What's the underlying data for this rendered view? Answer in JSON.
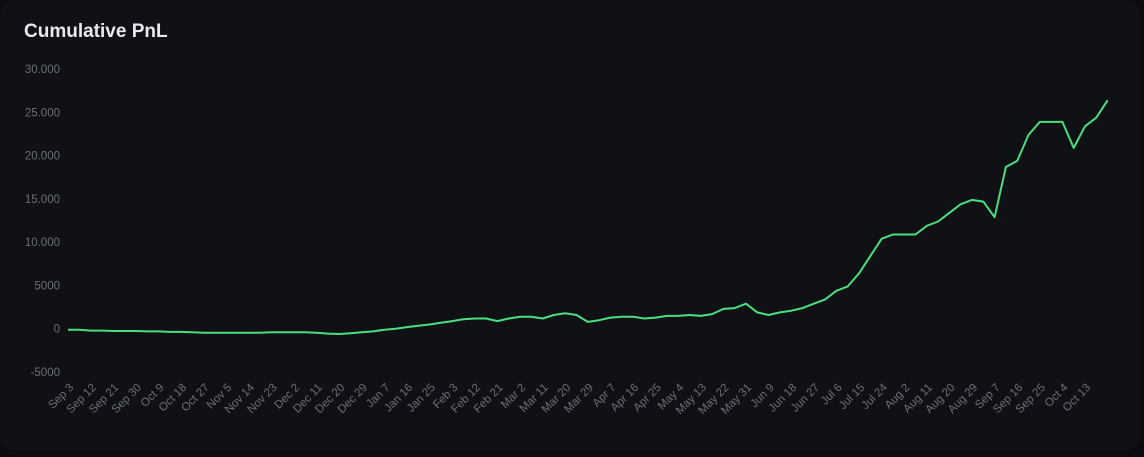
{
  "chart_data": {
    "type": "line",
    "title": "Cumulative PnL",
    "categories": [
      "Sep 3",
      null,
      "Sep 12",
      null,
      "Sep 21",
      null,
      "Sep 30",
      null,
      "Oct 9",
      null,
      "Oct 18",
      null,
      "Oct 27",
      null,
      "Nov 5",
      null,
      "Nov 14",
      null,
      "Nov 23",
      null,
      "Dec 2",
      null,
      "Dec 11",
      null,
      "Dec 20",
      null,
      "Dec 29",
      null,
      "Jan 7",
      null,
      "Jan 16",
      null,
      "Jan 25",
      null,
      "Feb 3",
      null,
      "Feb 12",
      null,
      "Feb 21",
      null,
      "Mar 2",
      null,
      "Mar 11",
      null,
      "Mar 20",
      null,
      "Mar 29",
      null,
      "Apr 7",
      null,
      "Apr 16",
      null,
      "Apr 25",
      null,
      "May 4",
      null,
      "May 13",
      null,
      "May 22",
      null,
      "May 31",
      null,
      "Jun 9",
      null,
      "Jun 18",
      null,
      "Jun 27",
      null,
      "Jul 6",
      null,
      "Jul 15",
      null,
      "Jul 24",
      null,
      "Aug 2",
      null,
      "Aug 11",
      null,
      "Aug 20",
      null,
      "Aug 29",
      null,
      "Sep 7",
      null,
      "Sep 16",
      null,
      "Sep 25",
      null,
      "Oct 4",
      null,
      "Oct 13",
      null,
      null
    ],
    "values": [
      0,
      0,
      -100,
      -100,
      -150,
      -150,
      -150,
      -200,
      -200,
      -250,
      -250,
      -300,
      -350,
      -350,
      -350,
      -350,
      -350,
      -350,
      -300,
      -300,
      -300,
      -300,
      -350,
      -450,
      -500,
      -400,
      -300,
      -200,
      0,
      100,
      300,
      450,
      600,
      800,
      1000,
      1200,
      1300,
      1300,
      1000,
      1300,
      1500,
      1500,
      1300,
      1700,
      1900,
      1700,
      900,
      1100,
      1400,
      1500,
      1500,
      1300,
      1400,
      1600,
      1600,
      1700,
      1600,
      1800,
      2400,
      2500,
      3000,
      2000,
      1700,
      2000,
      2200,
      2500,
      3000,
      3500,
      4500,
      5000,
      6500,
      8500,
      10500,
      11000,
      11000,
      11000,
      12000,
      12500,
      13500,
      14500,
      15000,
      14800,
      13000,
      18800,
      19500,
      22500,
      24000,
      24000,
      24000,
      21000,
      23500,
      24500,
      26500
    ],
    "color": "#4ade80",
    "ylim": [
      -5000,
      30000
    ],
    "yticks": [
      -5000,
      0,
      5000,
      {
        "value": 10000,
        "label": "10.000"
      },
      {
        "value": 15000,
        "label": "15.000"
      },
      {
        "value": 20000,
        "label": "20.000"
      },
      {
        "value": 25000,
        "label": "25.000"
      },
      {
        "value": 30000,
        "label": "30.000"
      }
    ]
  }
}
